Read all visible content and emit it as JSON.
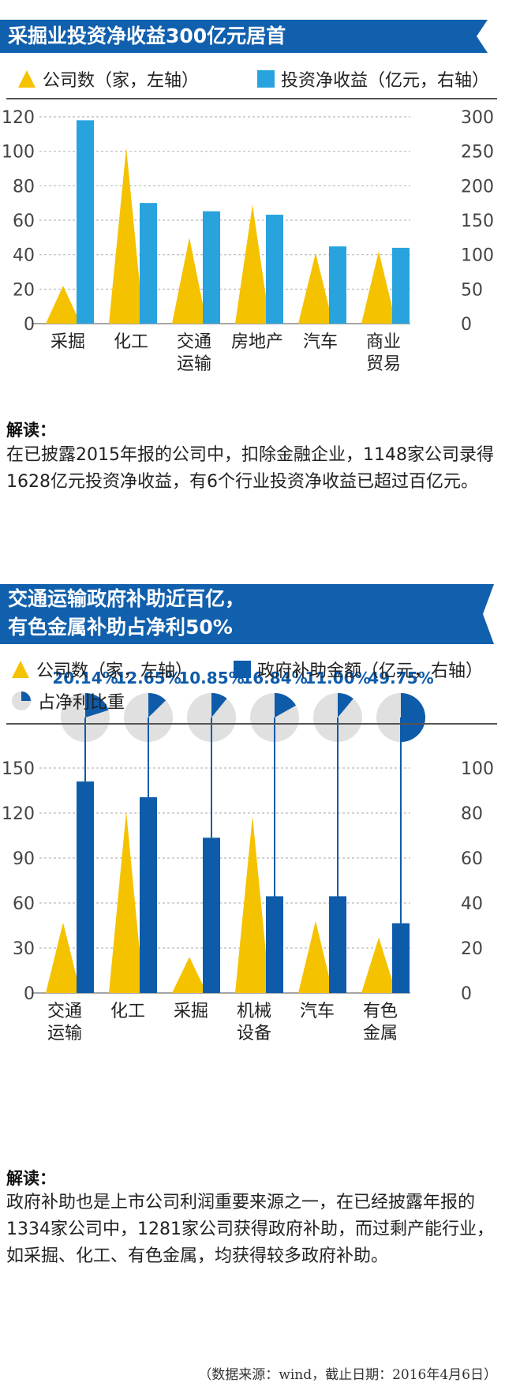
{
  "colors": {
    "gold": "#F5C200",
    "lightblue": "#29A3DE",
    "darkblue": "#0E5BAA",
    "banner": "#1160AE",
    "grid": "#bbbbbb",
    "pie_bg": "#e0e0e0"
  },
  "section1": {
    "title": "采掘业投资净收益300亿元居首",
    "legend_left": "公司数（家，左轴）",
    "legend_right": "投资净收益（亿元，右轴）",
    "interpretation_label": "解读：",
    "interpretation": "在已披露2015年报的公司中，扣除金融企业，1148家公司录得1628亿元投资净收益，有6个行业投资净收益已超过百亿元。"
  },
  "section2": {
    "title_line1": "交通运输政府补助近百亿，",
    "title_line2": "有色金属补助占净利50%",
    "legend_left": "公司数（家，左轴）",
    "legend_right": "政府补助金额（亿元，右轴）",
    "legend_pie": "占净利比重",
    "interpretation_label": "解读：",
    "interpretation": "政府补助也是上市公司利润重要来源之一，在已经披露年报的1334家公司中，1281家公司获得政府补助，而过剩产能行业，如采掘、化工、有色金属，均获得较多政府补助。"
  },
  "source_note": "（数据来源：wind，截止日期：2016年4月6日）",
  "chart_data": [
    {
      "type": "bar",
      "title": "采掘业投资净收益300亿元居首",
      "categories": [
        [
          "采掘"
        ],
        [
          "化工"
        ],
        [
          "交通",
          "运输"
        ],
        [
          "房地产"
        ],
        [
          "汽车"
        ],
        [
          "商业",
          "贸易"
        ]
      ],
      "series": [
        {
          "name": "公司数（家，左轴）",
          "axis": "left",
          "shape": "triangle",
          "values": [
            22,
            102,
            50,
            69,
            41,
            42
          ]
        },
        {
          "name": "投资净收益（亿元，右轴）",
          "axis": "right",
          "shape": "bar",
          "values": [
            295,
            175,
            163,
            158,
            112,
            110
          ]
        }
      ],
      "left_axis": {
        "ylim": [
          0,
          120
        ],
        "ticks": [
          0,
          20,
          40,
          60,
          80,
          100,
          120
        ]
      },
      "right_axis": {
        "ylim": [
          0,
          300
        ],
        "ticks": [
          0,
          50,
          100,
          150,
          200,
          250,
          300
        ]
      }
    },
    {
      "type": "bar",
      "title": "交通运输政府补助近百亿，有色金属补助占净利50%",
      "categories": [
        [
          "交通",
          "运输"
        ],
        [
          "化工"
        ],
        [
          "采掘"
        ],
        [
          "机械",
          "设备"
        ],
        [
          "汽车"
        ],
        [
          "有色",
          "金属"
        ]
      ],
      "series": [
        {
          "name": "公司数（家，左轴）",
          "axis": "left",
          "shape": "triangle",
          "values": [
            47,
            121,
            24,
            118,
            48,
            37
          ]
        },
        {
          "name": "政府补助金额（亿元，右轴）",
          "axis": "right",
          "shape": "bar",
          "values": [
            94,
            87,
            69,
            43,
            43,
            31
          ]
        },
        {
          "name": "占净利比重",
          "shape": "pie",
          "values": [
            20.14,
            12.65,
            10.85,
            16.84,
            11.0,
            49.75
          ],
          "labels": [
            "20.14%",
            "12.65%",
            "10.85%",
            "16.84%",
            "11.00%",
            "49.75%"
          ]
        }
      ],
      "left_axis": {
        "ylim": [
          0,
          150
        ],
        "ticks": [
          0,
          30,
          60,
          90,
          120,
          150
        ]
      },
      "right_axis": {
        "ylim": [
          0,
          100
        ],
        "ticks": [
          0,
          20,
          40,
          60,
          80,
          100
        ]
      }
    }
  ]
}
